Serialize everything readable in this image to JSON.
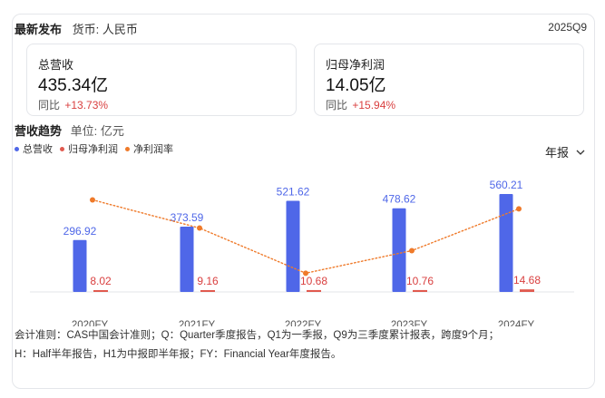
{
  "header": {
    "title": "最新发布",
    "currency": "货币: 人民币",
    "period": "2025Q9"
  },
  "metrics": [
    {
      "label": "总营收",
      "value": "435.34亿",
      "yoy_label": "同比",
      "yoy_change": "+13.73%"
    },
    {
      "label": "归母净利润",
      "value": "14.05亿",
      "yoy_label": "同比",
      "yoy_change": "+15.94%"
    }
  ],
  "trend": {
    "title": "营收趋势",
    "unit": "单位: 亿元",
    "period_selector": "年报"
  },
  "icons": {
    "dropdown": "chevron-down-icon"
  },
  "colors": {
    "revenue": "#4f67e8",
    "net_profit": "#e05a4f",
    "margin": "#ef7a2a",
    "positive_change": "#d93f3f"
  },
  "chart_data": {
    "type": "bar",
    "categories": [
      "2020FY",
      "2021FY",
      "2022FY",
      "2023FY",
      "2024FY"
    ],
    "series": [
      {
        "name": "总营收",
        "type": "bar",
        "values": [
          296.92,
          373.59,
          521.62,
          478.62,
          560.21
        ],
        "labels": [
          "296.92",
          "373.59",
          "521.62",
          "478.62",
          "560.21"
        ]
      },
      {
        "name": "归母净利润",
        "type": "bar",
        "values": [
          8.02,
          9.16,
          10.68,
          10.76,
          14.68
        ],
        "labels": [
          "8.02",
          "9.16",
          "10.68",
          "10.76",
          "14.68"
        ]
      },
      {
        "name": "净利润率",
        "type": "line",
        "style": "dotted",
        "axis": "secondary",
        "values": [
          2.7,
          2.45,
          2.05,
          2.25,
          2.62
        ]
      }
    ],
    "legend_position": "top-left",
    "grid": false
  },
  "footnote": {
    "line1": "会计准则：CAS中国会计准则；Q：Quarter季度报告，Q1为一季报，Q9为三季度累计报表，跨度9个月；",
    "line2": "H：Half半年报告，H1为中报即半年报；FY：Financial Year年度报告。"
  }
}
